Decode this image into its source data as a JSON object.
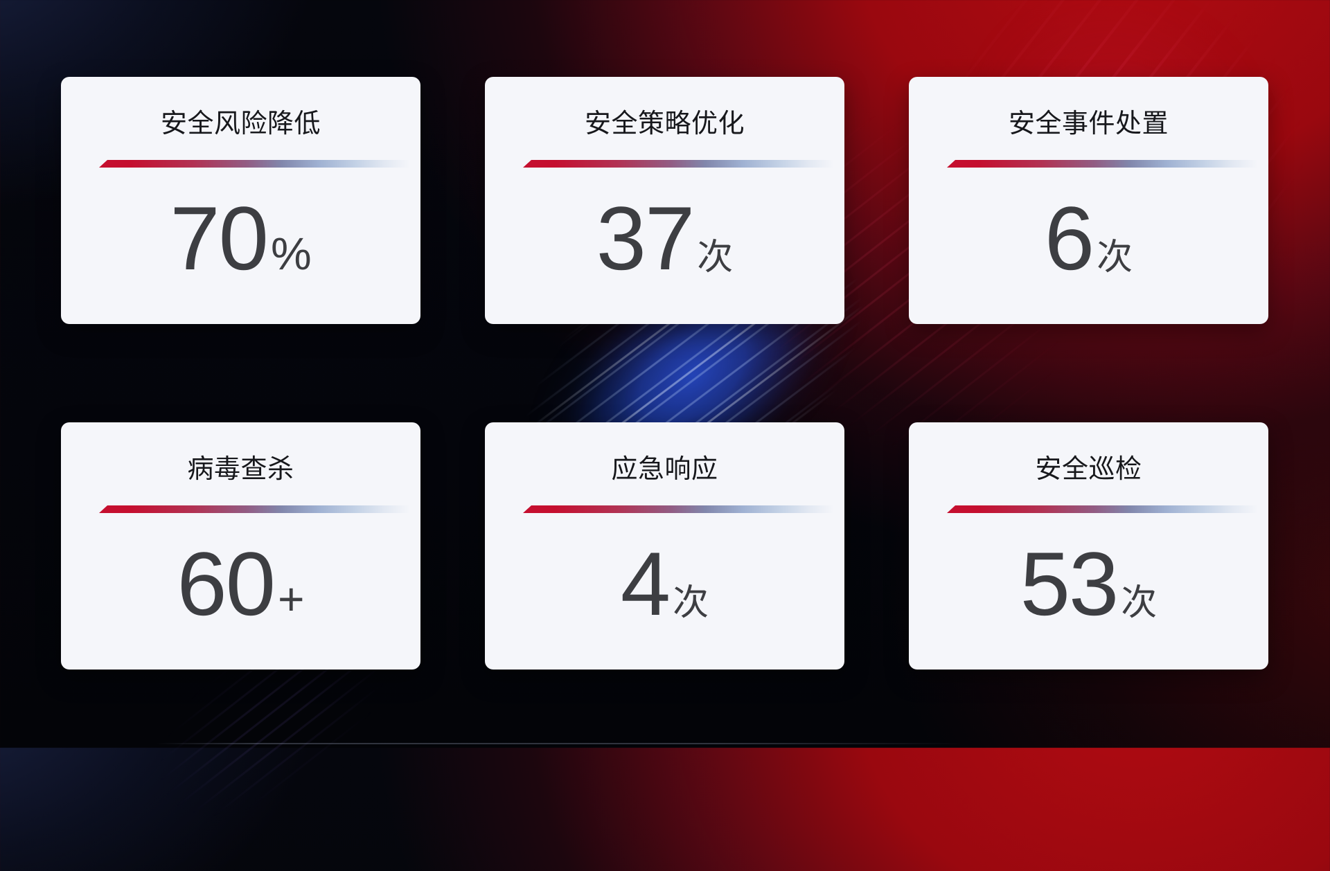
{
  "dashboard": {
    "cards": [
      {
        "title": "安全风险降低",
        "value": "70",
        "unit": "%"
      },
      {
        "title": "安全策略优化",
        "value": "37",
        "unit": "次"
      },
      {
        "title": "安全事件处置",
        "value": "6",
        "unit": "次"
      },
      {
        "title": "病毒查杀",
        "value": "60",
        "unit": "+"
      },
      {
        "title": "应急响应",
        "value": "4",
        "unit": "次"
      },
      {
        "title": "安全巡检",
        "value": "53",
        "unit": "次"
      }
    ],
    "colors": {
      "card_background": "#f5f6fa",
      "title_text": "#17181c",
      "value_text": "#3d3e42",
      "accent_red": "#c50f2f",
      "accent_blue": "#2547c0",
      "line_gradient_start": "#c50f2f",
      "line_gradient_mid": "#8186ab",
      "line_gradient_end": "#e2e8f2",
      "background_red_glow": "#b00b12",
      "background_navy": "#1c2446"
    }
  }
}
